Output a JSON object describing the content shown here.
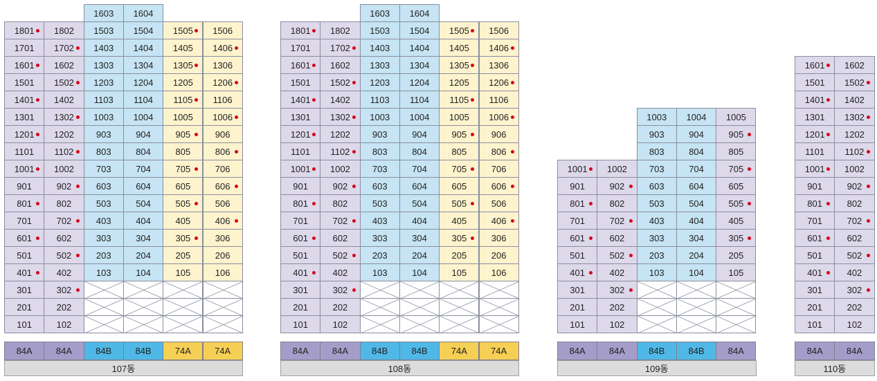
{
  "buildings": [
    {
      "name": "107동",
      "types": [
        "84A",
        "84A",
        "84B",
        "84B",
        "74A",
        "74A"
      ],
      "floors": [
        {
          "floor": 18,
          "units": [
            "1801",
            "1802",
            "1503",
            "1504",
            "1505",
            "1506"
          ],
          "dots": [
            1,
            0,
            0,
            0,
            1,
            0
          ]
        },
        {
          "floor": 17,
          "units": [
            "1701",
            "1702",
            "1403",
            "1404",
            "1405",
            "1406"
          ],
          "dots": [
            0,
            1,
            0,
            0,
            0,
            1
          ]
        },
        {
          "floor": 16,
          "units": [
            "1601",
            "1602",
            "1303",
            "1304",
            "1305",
            "1306"
          ],
          "dots": [
            1,
            0,
            0,
            0,
            1,
            0
          ]
        },
        {
          "floor": 15,
          "units": [
            "1501",
            "1502",
            "1203",
            "1204",
            "1205",
            "1206"
          ],
          "dots": [
            0,
            1,
            0,
            0,
            0,
            1
          ]
        },
        {
          "floor": 14,
          "units": [
            "1401",
            "1402",
            "1103",
            "1104",
            "1105",
            "1106"
          ],
          "dots": [
            1,
            0,
            0,
            0,
            1,
            0
          ]
        },
        {
          "floor": 13,
          "units": [
            "1301",
            "1302",
            "1003",
            "1004",
            "1005",
            "1006"
          ],
          "dots": [
            0,
            1,
            0,
            0,
            0,
            1
          ]
        },
        {
          "floor": 12,
          "units": [
            "1201",
            "1202",
            "903",
            "904",
            "905",
            "906"
          ],
          "dots": [
            1,
            0,
            0,
            0,
            1,
            0
          ]
        },
        {
          "floor": 11,
          "units": [
            "1101",
            "1102",
            "803",
            "804",
            "805",
            "806"
          ],
          "dots": [
            0,
            1,
            0,
            0,
            0,
            1
          ]
        },
        {
          "floor": 10,
          "units": [
            "1001",
            "1002",
            "703",
            "704",
            "705",
            "706"
          ],
          "dots": [
            1,
            0,
            0,
            0,
            1,
            0
          ]
        },
        {
          "floor": 9,
          "units": [
            "901",
            "902",
            "603",
            "604",
            "605",
            "606"
          ],
          "dots": [
            0,
            1,
            0,
            0,
            0,
            1
          ]
        },
        {
          "floor": 8,
          "units": [
            "801",
            "802",
            "503",
            "504",
            "505",
            "506"
          ],
          "dots": [
            1,
            0,
            0,
            0,
            1,
            0
          ]
        },
        {
          "floor": 7,
          "units": [
            "701",
            "702",
            "403",
            "404",
            "405",
            "406"
          ],
          "dots": [
            0,
            1,
            0,
            0,
            0,
            1
          ]
        },
        {
          "floor": 6,
          "units": [
            "601",
            "602",
            "303",
            "304",
            "305",
            "306"
          ],
          "dots": [
            1,
            0,
            0,
            0,
            1,
            0
          ]
        },
        {
          "floor": 5,
          "units": [
            "501",
            "502",
            "203",
            "204",
            "205",
            "206"
          ],
          "dots": [
            0,
            1,
            0,
            0,
            0,
            0
          ]
        },
        {
          "floor": 4,
          "units": [
            "401",
            "402",
            "103",
            "104",
            "105",
            "106"
          ],
          "dots": [
            1,
            0,
            0,
            0,
            0,
            0
          ]
        },
        {
          "floor": 3,
          "units": [
            "301",
            "302",
            "",
            "",
            "",
            ""
          ],
          "dots": [
            0,
            1,
            0,
            0,
            0,
            0
          ]
        },
        {
          "floor": 2,
          "units": [
            "201",
            "202",
            "",
            "",
            "",
            ""
          ],
          "dots": [
            0,
            0,
            0,
            0,
            0,
            0
          ]
        },
        {
          "floor": 1,
          "units": [
            "101",
            "102",
            "",
            "",
            "",
            ""
          ],
          "dots": [
            0,
            0,
            0,
            0,
            0,
            0
          ]
        }
      ],
      "top_units": [
        {
          "col": 2,
          "label": "1603"
        },
        {
          "col": 3,
          "label": "1604"
        }
      ]
    },
    {
      "name": "108동",
      "types": [
        "84A",
        "84A",
        "84B",
        "84B",
        "74A",
        "74A"
      ],
      "floors": [
        {
          "floor": 18,
          "units": [
            "1801",
            "1802",
            "1503",
            "1504",
            "1505",
            "1506"
          ],
          "dots": [
            1,
            0,
            0,
            0,
            1,
            0
          ]
        },
        {
          "floor": 17,
          "units": [
            "1701",
            "1702",
            "1403",
            "1404",
            "1405",
            "1406"
          ],
          "dots": [
            0,
            1,
            0,
            0,
            0,
            1
          ]
        },
        {
          "floor": 16,
          "units": [
            "1601",
            "1602",
            "1303",
            "1304",
            "1305",
            "1306"
          ],
          "dots": [
            1,
            0,
            0,
            0,
            1,
            0
          ]
        },
        {
          "floor": 15,
          "units": [
            "1501",
            "1502",
            "1203",
            "1204",
            "1205",
            "1206"
          ],
          "dots": [
            0,
            1,
            0,
            0,
            0,
            1
          ]
        },
        {
          "floor": 14,
          "units": [
            "1401",
            "1402",
            "1103",
            "1104",
            "1105",
            "1106"
          ],
          "dots": [
            1,
            0,
            0,
            0,
            1,
            0
          ]
        },
        {
          "floor": 13,
          "units": [
            "1301",
            "1302",
            "1003",
            "1004",
            "1005",
            "1006"
          ],
          "dots": [
            0,
            1,
            0,
            0,
            0,
            1
          ]
        },
        {
          "floor": 12,
          "units": [
            "1201",
            "1202",
            "903",
            "904",
            "905",
            "906"
          ],
          "dots": [
            1,
            0,
            0,
            0,
            1,
            0
          ]
        },
        {
          "floor": 11,
          "units": [
            "1101",
            "1102",
            "803",
            "804",
            "805",
            "806"
          ],
          "dots": [
            0,
            1,
            0,
            0,
            0,
            1
          ]
        },
        {
          "floor": 10,
          "units": [
            "1001",
            "1002",
            "703",
            "704",
            "705",
            "706"
          ],
          "dots": [
            1,
            0,
            0,
            0,
            1,
            0
          ]
        },
        {
          "floor": 9,
          "units": [
            "901",
            "902",
            "603",
            "604",
            "605",
            "606"
          ],
          "dots": [
            0,
            1,
            0,
            0,
            0,
            1
          ]
        },
        {
          "floor": 8,
          "units": [
            "801",
            "802",
            "503",
            "504",
            "505",
            "506"
          ],
          "dots": [
            1,
            0,
            0,
            0,
            1,
            0
          ]
        },
        {
          "floor": 7,
          "units": [
            "701",
            "702",
            "403",
            "404",
            "405",
            "406"
          ],
          "dots": [
            0,
            1,
            0,
            0,
            0,
            1
          ]
        },
        {
          "floor": 6,
          "units": [
            "601",
            "602",
            "303",
            "304",
            "305",
            "306"
          ],
          "dots": [
            1,
            0,
            0,
            0,
            1,
            0
          ]
        },
        {
          "floor": 5,
          "units": [
            "501",
            "502",
            "203",
            "204",
            "205",
            "206"
          ],
          "dots": [
            0,
            1,
            0,
            0,
            0,
            0
          ]
        },
        {
          "floor": 4,
          "units": [
            "401",
            "402",
            "103",
            "104",
            "105",
            "106"
          ],
          "dots": [
            1,
            0,
            0,
            0,
            0,
            0
          ]
        },
        {
          "floor": 3,
          "units": [
            "301",
            "302",
            "",
            "",
            "",
            ""
          ],
          "dots": [
            0,
            1,
            0,
            0,
            0,
            0
          ]
        },
        {
          "floor": 2,
          "units": [
            "201",
            "202",
            "",
            "",
            "",
            ""
          ],
          "dots": [
            0,
            0,
            0,
            0,
            0,
            0
          ]
        },
        {
          "floor": 1,
          "units": [
            "101",
            "102",
            "",
            "",
            "",
            ""
          ],
          "dots": [
            0,
            0,
            0,
            0,
            0,
            0
          ]
        }
      ],
      "top_units": [
        {
          "col": 2,
          "label": "1603"
        },
        {
          "col": 3,
          "label": "1604"
        }
      ]
    },
    {
      "name": "109동",
      "types": [
        "84A",
        "84A",
        "84B",
        "84B",
        "84A"
      ],
      "floors": [
        {
          "floor": 13,
          "units": [
            "",
            "",
            "1003",
            "1004",
            "1005"
          ],
          "dots": [
            0,
            0,
            0,
            0,
            0
          ]
        },
        {
          "floor": 12,
          "units": [
            "",
            "",
            "903",
            "904",
            "905"
          ],
          "dots": [
            0,
            0,
            0,
            0,
            1
          ]
        },
        {
          "floor": 11,
          "units": [
            "",
            "",
            "803",
            "804",
            "805"
          ],
          "dots": [
            0,
            0,
            0,
            0,
            0
          ]
        },
        {
          "floor": 10,
          "units": [
            "1001",
            "1002",
            "703",
            "704",
            "705"
          ],
          "dots": [
            1,
            0,
            0,
            0,
            1
          ]
        },
        {
          "floor": 9,
          "units": [
            "901",
            "902",
            "603",
            "604",
            "605"
          ],
          "dots": [
            0,
            1,
            0,
            0,
            0
          ]
        },
        {
          "floor": 8,
          "units": [
            "801",
            "802",
            "503",
            "504",
            "505"
          ],
          "dots": [
            1,
            0,
            0,
            0,
            1
          ]
        },
        {
          "floor": 7,
          "units": [
            "701",
            "702",
            "403",
            "404",
            "405"
          ],
          "dots": [
            0,
            1,
            0,
            0,
            0
          ]
        },
        {
          "floor": 6,
          "units": [
            "601",
            "602",
            "303",
            "304",
            "305"
          ],
          "dots": [
            1,
            0,
            0,
            0,
            1
          ]
        },
        {
          "floor": 5,
          "units": [
            "501",
            "502",
            "203",
            "204",
            "205"
          ],
          "dots": [
            0,
            1,
            0,
            0,
            0
          ]
        },
        {
          "floor": 4,
          "units": [
            "401",
            "402",
            "103",
            "104",
            "105"
          ],
          "dots": [
            1,
            0,
            0,
            0,
            0
          ]
        },
        {
          "floor": 3,
          "units": [
            "301",
            "302",
            "",
            "",
            ""
          ],
          "dots": [
            0,
            1,
            0,
            0,
            0
          ]
        },
        {
          "floor": 2,
          "units": [
            "201",
            "202",
            "",
            "",
            ""
          ],
          "dots": [
            0,
            0,
            0,
            0,
            0
          ]
        },
        {
          "floor": 1,
          "units": [
            "101",
            "102",
            "",
            "",
            ""
          ],
          "dots": [
            0,
            0,
            0,
            0,
            0
          ]
        }
      ],
      "top_units": []
    },
    {
      "name": "110동",
      "types": [
        "84A",
        "84A"
      ],
      "floors": [
        {
          "floor": 16,
          "units": [
            "1601",
            "1602"
          ],
          "dots": [
            1,
            0
          ]
        },
        {
          "floor": 15,
          "units": [
            "1501",
            "1502"
          ],
          "dots": [
            0,
            1
          ]
        },
        {
          "floor": 14,
          "units": [
            "1401",
            "1402"
          ],
          "dots": [
            1,
            0
          ]
        },
        {
          "floor": 13,
          "units": [
            "1301",
            "1302"
          ],
          "dots": [
            0,
            1
          ]
        },
        {
          "floor": 12,
          "units": [
            "1201",
            "1202"
          ],
          "dots": [
            1,
            0
          ]
        },
        {
          "floor": 11,
          "units": [
            "1101",
            "1102"
          ],
          "dots": [
            0,
            1
          ]
        },
        {
          "floor": 10,
          "units": [
            "1001",
            "1002"
          ],
          "dots": [
            1,
            0
          ]
        },
        {
          "floor": 9,
          "units": [
            "901",
            "902"
          ],
          "dots": [
            0,
            1
          ]
        },
        {
          "floor": 8,
          "units": [
            "801",
            "802"
          ],
          "dots": [
            1,
            0
          ]
        },
        {
          "floor": 7,
          "units": [
            "701",
            "702"
          ],
          "dots": [
            0,
            1
          ]
        },
        {
          "floor": 6,
          "units": [
            "601",
            "602"
          ],
          "dots": [
            1,
            0
          ]
        },
        {
          "floor": 5,
          "units": [
            "501",
            "502"
          ],
          "dots": [
            0,
            1
          ]
        },
        {
          "floor": 4,
          "units": [
            "401",
            "402"
          ],
          "dots": [
            1,
            0
          ]
        },
        {
          "floor": 3,
          "units": [
            "301",
            "302"
          ],
          "dots": [
            0,
            1
          ]
        },
        {
          "floor": 2,
          "units": [
            "201",
            "202"
          ],
          "dots": [
            0,
            0
          ]
        },
        {
          "floor": 1,
          "units": [
            "101",
            "102"
          ],
          "dots": [
            0,
            0
          ]
        }
      ],
      "top_units": []
    }
  ],
  "colors": {
    "purple_unit": "#ddd8ea",
    "blue_unit": "#c6e4f3",
    "yellow_unit": "#fdf3cd",
    "type_84A": "#a59dc9",
    "type_84B": "#4fb8e6",
    "type_74A": "#f6cf55",
    "dot": "#d7001a",
    "label_bg": "#dcdcdc"
  }
}
